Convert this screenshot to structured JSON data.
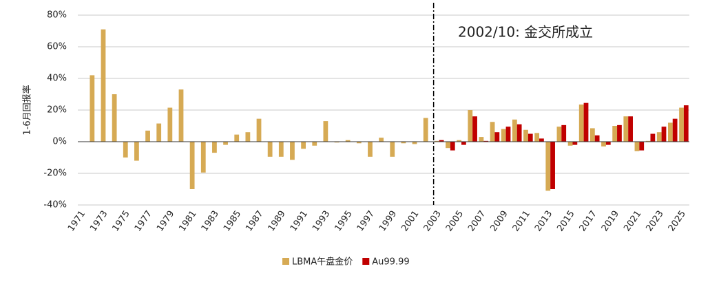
{
  "chart_data": {
    "type": "bar",
    "y_label": "1-6月回报率",
    "annotation": "2002/10: 金交所成立",
    "categories": [
      "1971",
      "1972",
      "1973",
      "1974",
      "1975",
      "1976",
      "1977",
      "1978",
      "1979",
      "1980",
      "1981",
      "1982",
      "1983",
      "1984",
      "1985",
      "1986",
      "1987",
      "1988",
      "1989",
      "1990",
      "1991",
      "1992",
      "1993",
      "1994",
      "1995",
      "1996",
      "1997",
      "1998",
      "1999",
      "2000",
      "2001",
      "2002",
      "2003",
      "2004",
      "2005",
      "2006",
      "2007",
      "2008",
      "2009",
      "2010",
      "2011",
      "2012",
      "2013",
      "2014",
      "2015",
      "2016",
      "2017",
      "2018",
      "2019",
      "2020",
      "2021",
      "2022",
      "2023",
      "2024",
      "2025"
    ],
    "category_labels_shown": "odd",
    "series": [
      {
        "name": "LBMA午盘金价",
        "color": "#D6AA54",
        "values": [
          null,
          42,
          71,
          30,
          -10,
          -12,
          7,
          11.5,
          21.5,
          33,
          -30,
          -19.5,
          -7,
          -2,
          4.5,
          6,
          14.5,
          -9.5,
          -9.5,
          -11.5,
          -4.5,
          -2.5,
          13,
          -0.5,
          1,
          -1,
          -9.5,
          2.5,
          -9.5,
          -1,
          -1.5,
          15,
          0.5,
          -4,
          1,
          20,
          3,
          12.5,
          8,
          14,
          7.5,
          5.5,
          -31,
          9.5,
          -2.5,
          23.5,
          8.5,
          -3,
          10,
          16,
          -6,
          0.5,
          6,
          12,
          21.5
        ]
      },
      {
        "name": "Au99.99",
        "color": "#C00000",
        "values": [
          null,
          null,
          null,
          null,
          null,
          null,
          null,
          null,
          null,
          null,
          null,
          null,
          null,
          null,
          null,
          null,
          null,
          null,
          null,
          null,
          null,
          null,
          null,
          null,
          null,
          null,
          null,
          null,
          null,
          null,
          null,
          null,
          1,
          -5.5,
          -2,
          16,
          0.5,
          6,
          9.5,
          11,
          5,
          2,
          -30,
          10.5,
          -2,
          24.5,
          4,
          -2,
          10.5,
          16,
          -5.5,
          5,
          9.5,
          14.5,
          23
        ]
      }
    ],
    "ylim": [
      -40,
      80
    ],
    "yticks": [
      {
        "value": -40,
        "label": "-40%"
      },
      {
        "value": -20,
        "label": "-20%"
      },
      {
        "value": 0,
        "label": "0%"
      },
      {
        "value": 20,
        "label": "20%"
      },
      {
        "value": 40,
        "label": "40%"
      },
      {
        "value": 60,
        "label": "60%"
      },
      {
        "value": 80,
        "label": "80%"
      }
    ],
    "grid": true,
    "legend": "bottom"
  }
}
